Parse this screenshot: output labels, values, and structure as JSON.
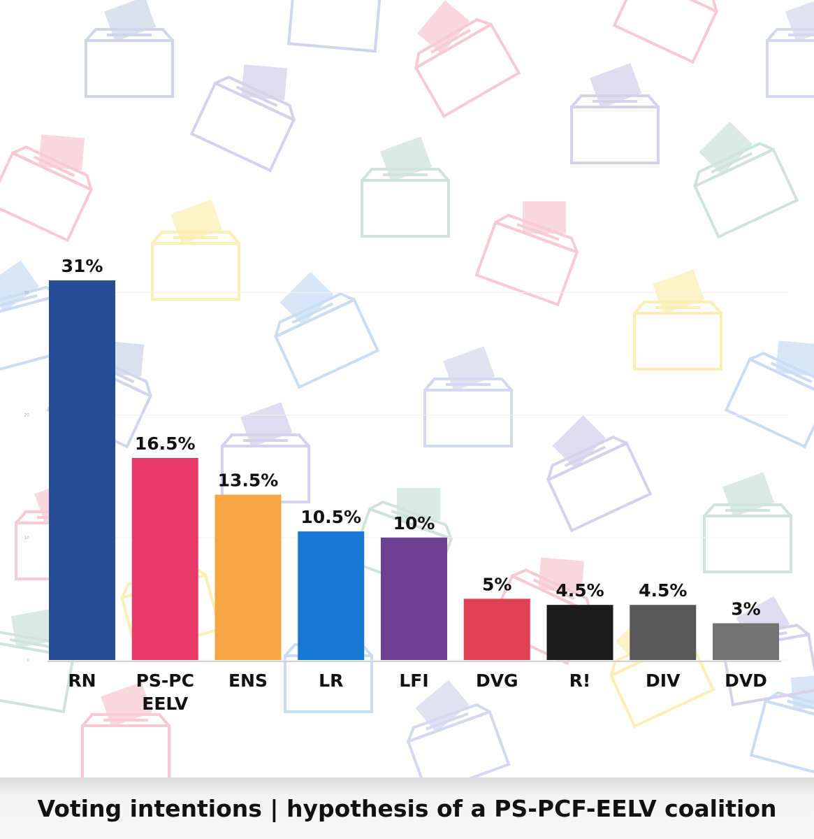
{
  "caption": "Voting intentions | hypothesis of a PS-PCF-EELV coalition",
  "chart_data": {
    "type": "bar",
    "categories": [
      "RN",
      "PS-PC\nEELV",
      "ENS",
      "LR",
      "LFI",
      "DVG",
      "R!",
      "DIV",
      "DVD"
    ],
    "values": [
      31,
      16.5,
      13.5,
      10.5,
      10,
      5,
      4.5,
      4.5,
      3
    ],
    "value_labels": [
      "31%",
      "16.5%",
      "13.5%",
      "10.5%",
      "10%",
      "5%",
      "4.5%",
      "4.5%",
      "3%"
    ],
    "colors": [
      "#244d96",
      "#e8386a",
      "#f6a545",
      "#1878d4",
      "#6c3f92",
      "#e04055",
      "#1c1c1c",
      "#585858",
      "#727272"
    ],
    "y_ticks": [
      "0",
      "10",
      "20",
      "30"
    ],
    "ylim": [
      0,
      31
    ],
    "grid": true
  }
}
